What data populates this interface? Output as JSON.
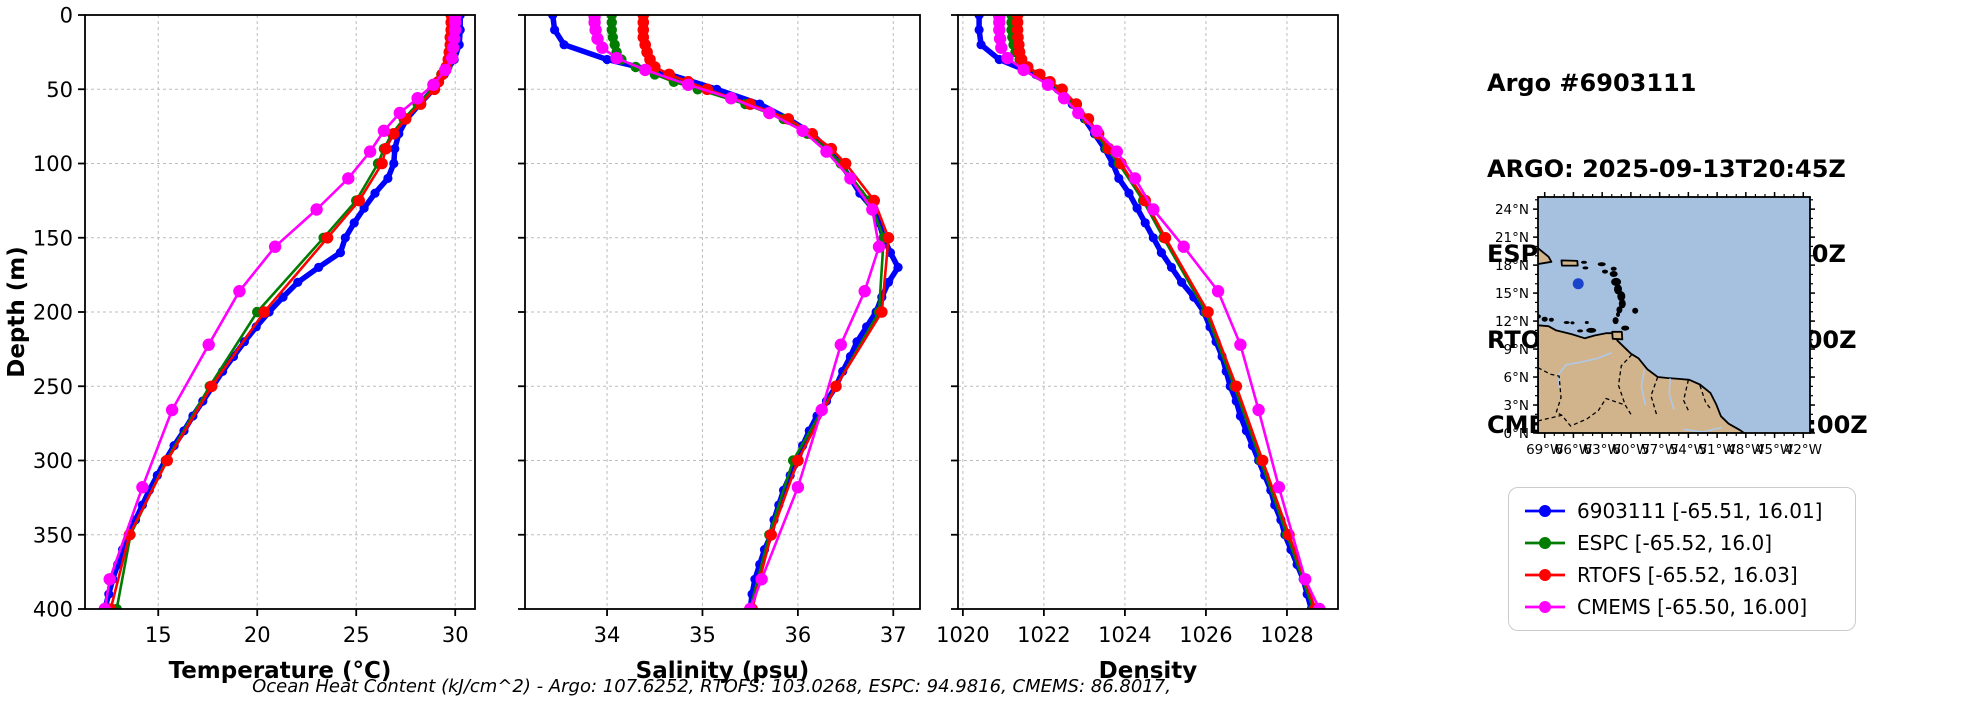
{
  "header": {
    "lines": [
      "Argo #6903111",
      "ARGO: 2025-09-13T20:45Z",
      "ESPC : 2025-09-13T21:00Z",
      "RTOFS: 2025-09-13T18:00Z",
      "CMEMS: 2025-09-13T18:00Z"
    ]
  },
  "ohc_text": "Ocean Heat Content (kJ/cm^2) - Argo: 107.6252,  RTOFS: 103.0268,  ESPC: 94.9816,  CMEMS: 86.8017,",
  "legend": {
    "items": [
      {
        "label": "6903111 [-65.51, 16.01]",
        "color": "#0000ff"
      },
      {
        "label": "ESPC [-65.52, 16.0]",
        "color": "#007d00"
      },
      {
        "label": "RTOFS [-65.52, 16.03]",
        "color": "#ff0000"
      },
      {
        "label": "CMEMS [-65.50, 16.00]",
        "color": "#ff00ff"
      }
    ]
  },
  "depth_grids": {
    "argo": [
      0,
      10,
      20,
      30,
      40,
      50,
      60,
      70,
      80,
      90,
      100,
      110,
      120,
      130,
      140,
      150,
      160,
      170,
      180,
      190,
      200,
      210,
      220,
      230,
      240,
      250,
      260,
      270,
      280,
      290,
      300,
      310,
      320,
      330,
      340,
      350,
      360,
      370,
      380,
      390,
      400
    ],
    "model": [
      0,
      5,
      10,
      15,
      20,
      25,
      30,
      35,
      40,
      45,
      50,
      60,
      70,
      80,
      90,
      100,
      125,
      150,
      200,
      250,
      300,
      350,
      400
    ],
    "cmems": [
      1,
      5,
      10,
      16,
      22,
      29,
      37,
      47,
      56,
      66,
      78,
      92,
      110,
      131,
      156,
      186,
      222,
      266,
      318,
      380,
      400
    ]
  },
  "chart_data": [
    {
      "type": "line",
      "xlabel": "Temperature (°C)",
      "ylabel": "Depth (m)",
      "xlim": [
        11.3,
        31.0
      ],
      "xticks": [
        15,
        20,
        25,
        30
      ],
      "ylim": [
        0,
        400
      ],
      "yticks": [
        0,
        50,
        100,
        150,
        200,
        250,
        300,
        350,
        400
      ],
      "show_ytick_labels": true,
      "grid": true,
      "series": [
        {
          "name": "6903111",
          "color": "#0000ff",
          "grid": "argo",
          "values": [
            30.25,
            30.25,
            30.2,
            29.95,
            29.45,
            28.9,
            28.2,
            27.55,
            27.15,
            26.95,
            26.9,
            26.6,
            25.95,
            25.4,
            24.9,
            24.45,
            24.2,
            23.1,
            22.05,
            21.3,
            20.6,
            19.95,
            19.35,
            18.8,
            18.25,
            17.75,
            17.25,
            16.75,
            16.3,
            15.8,
            15.35,
            14.95,
            14.55,
            14.2,
            13.85,
            13.5,
            13.2,
            12.95,
            12.7,
            12.5,
            12.3
          ]
        },
        {
          "name": "ESPC",
          "color": "#007d00",
          "grid": "model",
          "values": [
            29.95,
            29.95,
            29.95,
            29.9,
            29.9,
            29.85,
            29.8,
            29.6,
            29.3,
            29.1,
            28.85,
            28.1,
            27.4,
            26.8,
            26.4,
            26.1,
            25.0,
            23.35,
            20.0,
            17.6,
            15.4,
            13.6,
            12.9
          ]
        },
        {
          "name": "RTOFS",
          "color": "#ff0000",
          "grid": "model",
          "values": [
            29.8,
            29.8,
            29.8,
            29.75,
            29.75,
            29.7,
            29.65,
            29.55,
            29.35,
            29.15,
            28.95,
            28.25,
            27.5,
            26.9,
            26.5,
            26.3,
            25.15,
            23.55,
            20.35,
            17.7,
            15.45,
            13.55,
            12.6
          ]
        },
        {
          "name": "CMEMS",
          "color": "#ff00ff",
          "grid": "cmems",
          "values": [
            30.0,
            30.0,
            30.0,
            29.95,
            29.9,
            29.85,
            29.5,
            28.9,
            28.1,
            27.2,
            26.4,
            25.7,
            24.6,
            23.0,
            20.9,
            19.1,
            17.55,
            15.7,
            14.2,
            12.55,
            12.3
          ]
        }
      ]
    },
    {
      "type": "line",
      "xlabel": "Salinity (psu)",
      "ylabel": "",
      "xlim": [
        33.14,
        37.28
      ],
      "xticks": [
        34,
        35,
        36,
        37
      ],
      "ylim": [
        0,
        400
      ],
      "yticks": [
        0,
        50,
        100,
        150,
        200,
        250,
        300,
        350,
        400
      ],
      "show_ytick_labels": false,
      "grid": true,
      "series": [
        {
          "name": "6903111",
          "color": "#0000ff",
          "grid": "argo",
          "values": [
            33.43,
            33.45,
            33.55,
            34.0,
            34.65,
            35.15,
            35.6,
            35.9,
            36.15,
            36.3,
            36.45,
            36.55,
            36.65,
            36.78,
            36.85,
            36.9,
            36.97,
            37.05,
            36.95,
            36.88,
            36.82,
            36.72,
            36.62,
            36.55,
            36.47,
            36.4,
            36.3,
            36.2,
            36.12,
            36.05,
            36.0,
            35.92,
            35.85,
            35.8,
            35.75,
            35.72,
            35.65,
            35.6,
            35.55,
            35.52,
            35.5
          ]
        },
        {
          "name": "ESPC",
          "color": "#007d00",
          "grid": "model",
          "values": [
            34.05,
            34.05,
            34.05,
            34.06,
            34.08,
            34.1,
            34.15,
            34.3,
            34.5,
            34.7,
            34.95,
            35.45,
            35.85,
            36.1,
            36.3,
            36.45,
            36.75,
            36.9,
            36.85,
            36.4,
            35.95,
            35.7,
            35.5
          ]
        },
        {
          "name": "RTOFS",
          "color": "#ff0000",
          "grid": "model",
          "values": [
            34.38,
            34.38,
            34.38,
            34.38,
            34.4,
            34.42,
            34.45,
            34.5,
            34.65,
            34.85,
            35.05,
            35.5,
            35.9,
            36.15,
            36.35,
            36.5,
            36.8,
            36.95,
            36.88,
            36.4,
            36.0,
            35.72,
            35.52
          ]
        },
        {
          "name": "CMEMS",
          "color": "#ff00ff",
          "grid": "cmems",
          "values": [
            33.87,
            33.87,
            33.88,
            33.9,
            33.95,
            34.1,
            34.4,
            34.85,
            35.3,
            35.7,
            36.05,
            36.3,
            36.55,
            36.78,
            36.85,
            36.7,
            36.45,
            36.25,
            36.0,
            35.62,
            35.5
          ]
        }
      ]
    },
    {
      "type": "line",
      "xlabel": "Density",
      "ylabel": "",
      "xlim": [
        1019.88,
        1029.26
      ],
      "xticks": [
        1020,
        1022,
        1024,
        1026,
        1028
      ],
      "ylim": [
        0,
        400
      ],
      "yticks": [
        0,
        50,
        100,
        150,
        200,
        250,
        300,
        350,
        400
      ],
      "show_ytick_labels": false,
      "grid": true,
      "series": [
        {
          "name": "6903111",
          "color": "#0000ff",
          "grid": "argo",
          "values": [
            1020.4,
            1020.4,
            1020.45,
            1020.9,
            1021.8,
            1022.35,
            1022.7,
            1023.0,
            1023.25,
            1023.5,
            1023.7,
            1023.85,
            1024.1,
            1024.3,
            1024.5,
            1024.7,
            1024.9,
            1025.15,
            1025.4,
            1025.7,
            1025.95,
            1026.1,
            1026.25,
            1026.4,
            1026.5,
            1026.6,
            1026.75,
            1026.85,
            1027.0,
            1027.15,
            1027.3,
            1027.45,
            1027.6,
            1027.7,
            1027.85,
            1027.95,
            1028.1,
            1028.25,
            1028.4,
            1028.5,
            1028.6
          ]
        },
        {
          "name": "ESPC",
          "color": "#007d00",
          "grid": "model",
          "values": [
            1021.2,
            1021.2,
            1021.2,
            1021.22,
            1021.25,
            1021.3,
            1021.4,
            1021.6,
            1021.85,
            1022.1,
            1022.4,
            1022.75,
            1023.05,
            1023.3,
            1023.55,
            1023.85,
            1024.45,
            1024.95,
            1026.0,
            1026.7,
            1027.35,
            1028.0,
            1028.65
          ]
        },
        {
          "name": "RTOFS",
          "color": "#ff0000",
          "grid": "model",
          "values": [
            1021.35,
            1021.35,
            1021.35,
            1021.36,
            1021.38,
            1021.4,
            1021.45,
            1021.6,
            1021.9,
            1022.15,
            1022.45,
            1022.8,
            1023.1,
            1023.35,
            1023.6,
            1023.9,
            1024.5,
            1025.0,
            1026.05,
            1026.75,
            1027.4,
            1028.05,
            1028.7
          ]
        },
        {
          "name": "CMEMS",
          "color": "#ff00ff",
          "grid": "cmems",
          "values": [
            1020.9,
            1020.9,
            1020.9,
            1020.92,
            1020.95,
            1021.1,
            1021.5,
            1022.1,
            1022.5,
            1022.85,
            1023.3,
            1023.8,
            1024.25,
            1024.7,
            1025.45,
            1026.3,
            1026.85,
            1027.3,
            1027.8,
            1028.45,
            1028.8
          ]
        }
      ]
    }
  ],
  "map": {
    "extent": {
      "lon_min": -69.7,
      "lon_max": -41.3,
      "lat_min": 0,
      "lat_max": 25.3
    },
    "lat_ticks": [
      0,
      3,
      6,
      9,
      12,
      15,
      18,
      21,
      24
    ],
    "lat_tick_labels": [
      "0°N",
      "3°N",
      "6°N",
      "9°N",
      "12°N",
      "15°N",
      "18°N",
      "21°N",
      "24°N"
    ],
    "lon_ticks": [
      -69,
      -66,
      -63,
      -60,
      -57,
      -54,
      -51,
      -48,
      -45,
      -42
    ],
    "lon_tick_labels": [
      "69°W",
      "66°W",
      "63°W",
      "60°W",
      "57°W",
      "54°W",
      "51°W",
      "48°W",
      "45°W",
      "42°W"
    ],
    "ocean_color": "#a6c0df",
    "land_color": "#d2b48c",
    "river_color": "#aec9ea",
    "coast_color": "#000000",
    "float_marker": {
      "lon": -65.5,
      "lat": 16.0,
      "color": "#1a43cc"
    },
    "land_polygons": [
      [
        [
          -69.7,
          11.55
        ],
        [
          -68.6,
          11.45
        ],
        [
          -67.8,
          11.0
        ],
        [
          -66.2,
          10.6
        ],
        [
          -64.8,
          10.15
        ],
        [
          -63.8,
          10.45
        ],
        [
          -62.6,
          10.7
        ],
        [
          -61.9,
          10.7
        ],
        [
          -61.4,
          9.9
        ],
        [
          -60.7,
          9.2
        ],
        [
          -60.0,
          8.5
        ],
        [
          -59.2,
          8.0
        ],
        [
          -58.3,
          6.85
        ],
        [
          -57.2,
          6.0
        ],
        [
          -56.2,
          5.9
        ],
        [
          -55.0,
          5.8
        ],
        [
          -53.9,
          5.7
        ],
        [
          -52.8,
          5.2
        ],
        [
          -51.7,
          4.3
        ],
        [
          -51.1,
          3.1
        ],
        [
          -50.6,
          1.8
        ],
        [
          -49.8,
          1.0
        ],
        [
          -48.6,
          0.3
        ],
        [
          -47.9,
          -0.2
        ],
        [
          -69.7,
          -0.2
        ]
      ],
      [
        [
          -69.8,
          19.9
        ],
        [
          -68.6,
          18.9
        ],
        [
          -68.3,
          18.35
        ],
        [
          -69.8,
          18.1
        ]
      ],
      [
        [
          -67.25,
          18.5
        ],
        [
          -65.6,
          18.45
        ],
        [
          -65.55,
          17.95
        ],
        [
          -67.2,
          17.95
        ]
      ],
      [
        [
          -61.95,
          10.85
        ],
        [
          -60.95,
          10.85
        ],
        [
          -60.9,
          10.05
        ],
        [
          -61.9,
          10.1
        ]
      ]
    ],
    "islands": [
      [
        -64.9,
        18.3,
        3,
        1.5
      ],
      [
        -64.75,
        17.7,
        3,
        1.5
      ],
      [
        -63.05,
        18.1,
        4,
        2
      ],
      [
        -62.7,
        17.3,
        3,
        2
      ],
      [
        -61.8,
        17.6,
        3,
        2
      ],
      [
        -61.8,
        17.05,
        4,
        3
      ],
      [
        -61.55,
        16.2,
        5,
        4
      ],
      [
        -61.35,
        15.4,
        4,
        5
      ],
      [
        -61.0,
        14.65,
        4,
        5
      ],
      [
        -60.9,
        13.85,
        3.5,
        4.5
      ],
      [
        -61.2,
        13.2,
        3,
        3.5
      ],
      [
        -61.35,
        12.7,
        2,
        2.5
      ],
      [
        -61.6,
        12.05,
        3,
        3.5
      ],
      [
        -59.55,
        13.1,
        3,
        3
      ],
      [
        -60.6,
        11.25,
        4,
        2.5
      ],
      [
        -64.15,
        11.0,
        5,
        2.5
      ],
      [
        -65.3,
        10.95,
        3,
        1.5
      ],
      [
        -66.7,
        11.85,
        3,
        1.5
      ],
      [
        -66.1,
        11.8,
        2,
        1.5
      ],
      [
        -64.6,
        11.85,
        2,
        1.5
      ],
      [
        -68.3,
        12.15,
        2.5,
        2
      ],
      [
        -69.0,
        12.2,
        3,
        2.5
      ],
      [
        -69.65,
        12.5,
        2.5,
        2
      ]
    ],
    "borders": [
      [
        [
          -59.9,
          8.4
        ],
        [
          -61.0,
          7.2
        ],
        [
          -61.3,
          5.1
        ],
        [
          -60.6,
          3.0
        ],
        [
          -60.0,
          2.0
        ]
      ],
      [
        [
          -57.2,
          6.0
        ],
        [
          -57.9,
          4.0
        ],
        [
          -57.3,
          1.9
        ]
      ],
      [
        [
          -54.0,
          5.7
        ],
        [
          -54.5,
          3.5
        ],
        [
          -53.9,
          2.2
        ]
      ],
      [
        [
          -52.8,
          5.1
        ],
        [
          -52.2,
          3.3
        ],
        [
          -51.7,
          2.6
        ]
      ],
      [
        [
          -69.7,
          1.3
        ],
        [
          -67.2,
          1.9
        ],
        [
          -66.3,
          0.75
        ],
        [
          -64.6,
          1.5
        ],
        [
          -63.4,
          2.4
        ],
        [
          -62.6,
          3.7
        ],
        [
          -60.6,
          3.0
        ]
      ],
      [
        [
          -69.7,
          7.0
        ],
        [
          -68.4,
          6.3
        ],
        [
          -67.5,
          6.1
        ],
        [
          -67.3,
          3.8
        ],
        [
          -67.8,
          2.2
        ],
        [
          -67.2,
          1.9
        ]
      ]
    ],
    "rivers": [
      [
        [
          -62.0,
          8.6
        ],
        [
          -63.5,
          8.0
        ],
        [
          -65.2,
          7.6
        ],
        [
          -66.8,
          7.3
        ],
        [
          -67.6,
          6.2
        ],
        [
          -67.4,
          4.5
        ]
      ],
      [
        [
          -58.6,
          6.8
        ],
        [
          -58.9,
          5.0
        ],
        [
          -58.5,
          3.0
        ]
      ],
      [
        [
          -55.9,
          5.85
        ],
        [
          -56.0,
          4.2
        ],
        [
          -55.5,
          2.5
        ]
      ],
      [
        [
          -50.5,
          0.6
        ],
        [
          -52.5,
          0.1
        ],
        [
          -54.5,
          0.4
        ]
      ]
    ]
  }
}
